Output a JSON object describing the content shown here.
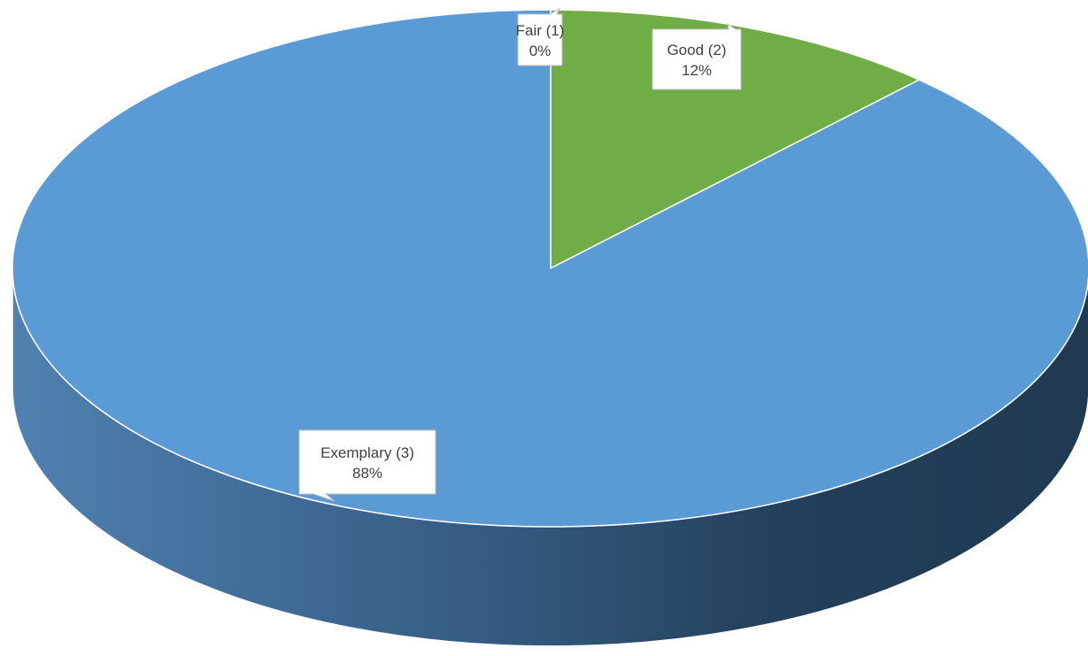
{
  "chart_data": {
    "type": "pie",
    "style": "3d",
    "categories": [
      "Fair (1)",
      "Good (2)",
      "Exemplary (3)"
    ],
    "values": [
      0,
      12,
      88
    ],
    "value_labels": [
      "0%",
      "12%",
      "88%"
    ],
    "colors": [
      "#ED7D31",
      "#70AD47",
      "#5B9BD5"
    ],
    "side_color_light": "#4F81B1",
    "side_color_dark": "#203A52",
    "title": "",
    "legend": "none",
    "data_labels": "callouts"
  }
}
